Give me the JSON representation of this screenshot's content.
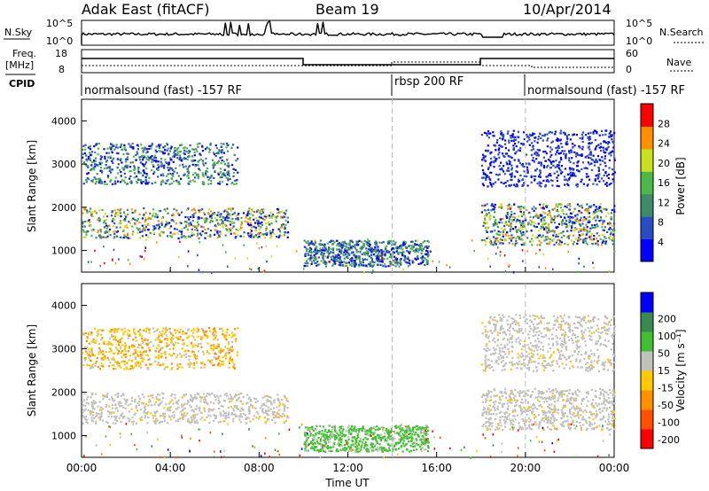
{
  "header": {
    "radar": "Adak East (fitACF)",
    "beam": "Beam 19",
    "date": "10/Apr/2014"
  },
  "status_panels": {
    "nsky_label": "N.Sky",
    "nsky_ticks": [
      "10^5",
      "10^0"
    ],
    "nsearch_label": "N.Search",
    "nsearch_ticks": [
      "10^5",
      "10^0"
    ],
    "freq_label_1": "Freq.",
    "freq_label_2": "[MHz]",
    "freq_ticks": [
      "18",
      "8"
    ],
    "nave_label": "Nave",
    "nave_ticks": [
      "60",
      "0"
    ],
    "cpid_label": "CPID",
    "cpid_segments": [
      {
        "label": "normalsound (fast) -157 RF",
        "start": 0,
        "end": 14
      },
      {
        "label": "rbsp 200 RF",
        "start": 14,
        "end": 20
      },
      {
        "label": "normalsound (fast) -157 RF",
        "start": 20,
        "end": 24
      }
    ]
  },
  "chart_data": [
    {
      "type": "heatmap",
      "panel": "power",
      "xlabel": "",
      "ylabel": "Slant Range [km]",
      "xlim": [
        0,
        24
      ],
      "ylim": [
        500,
        4500
      ],
      "yticks": [
        "1000",
        "2000",
        "3000",
        "4000"
      ],
      "colorbar": {
        "label": "Power [dB]",
        "ticks": [
          "4",
          "8",
          "12",
          "16",
          "20",
          "24",
          "28"
        ],
        "range": [
          0,
          30
        ],
        "colors": [
          "#0000ff",
          "#2a4cc2",
          "#3e8a6a",
          "#4cb848",
          "#c8e020",
          "#ff9000",
          "#ff0000"
        ]
      },
      "scatter_bands": [
        {
          "hours": [
            0,
            9.3
          ],
          "range_km": [
            1300,
            2000
          ],
          "level": "high"
        },
        {
          "hours": [
            0,
            7
          ],
          "range_km": [
            2550,
            3500
          ],
          "level": "mid"
        },
        {
          "hours": [
            10,
            15.6
          ],
          "range_km": [
            650,
            1250
          ],
          "level": "mid"
        },
        {
          "hours": [
            18,
            24
          ],
          "range_km": [
            1150,
            2100
          ],
          "level": "high"
        },
        {
          "hours": [
            18,
            24
          ],
          "range_km": [
            2500,
            3800
          ],
          "level": "low"
        }
      ]
    },
    {
      "type": "heatmap",
      "panel": "velocity",
      "xlabel": "Time UT",
      "ylabel": "Slant Range [km]",
      "xlim": [
        0,
        24
      ],
      "ylim": [
        500,
        4500
      ],
      "xticks": [
        "00:00",
        "04:00",
        "08:00",
        "12:00",
        "16:00",
        "20:00",
        "00:00"
      ],
      "yticks": [
        "1000",
        "2000",
        "3000",
        "4000"
      ],
      "colorbar": {
        "label": "Velocity [m s⁻¹]",
        "ticks": [
          "-200",
          "-100",
          "-50",
          "-15",
          "15",
          "50",
          "100",
          "200"
        ],
        "colors": [
          "#ff0000",
          "#ff5000",
          "#ff9000",
          "#ffc800",
          "#c0c0bc",
          "#40c030",
          "#3a8a50",
          "#0000ff"
        ]
      },
      "scatter_bands": [
        {
          "hours": [
            0,
            9.3
          ],
          "range_km": [
            1300,
            2000
          ],
          "velocity": "ground"
        },
        {
          "hours": [
            0,
            7
          ],
          "range_km": [
            2550,
            3500
          ],
          "velocity": "negative"
        },
        {
          "hours": [
            10,
            15.6
          ],
          "range_km": [
            650,
            1250
          ],
          "velocity": "positive"
        },
        {
          "hours": [
            18,
            24
          ],
          "range_km": [
            1150,
            2100
          ],
          "velocity": "ground"
        },
        {
          "hours": [
            18,
            24
          ],
          "range_km": [
            2500,
            3800
          ],
          "velocity": "ground"
        }
      ]
    }
  ]
}
